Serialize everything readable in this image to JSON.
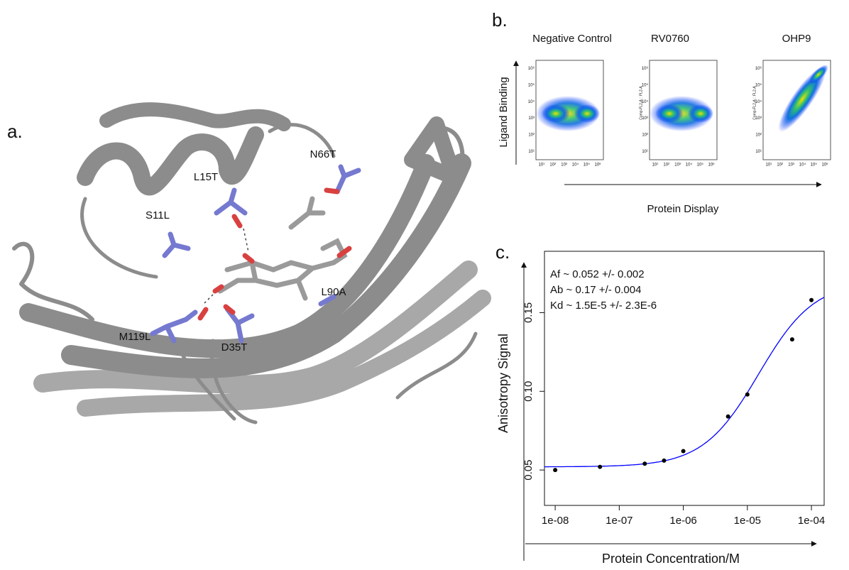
{
  "panel_a": {
    "label": "a.",
    "residues": [
      "N66T",
      "L15T",
      "S11L",
      "L90A",
      "M119L",
      "D35T"
    ]
  },
  "panel_b": {
    "label": "b.",
    "titles": [
      "Negative Control",
      "RV0760",
      "OHP9"
    ],
    "y_label": "Ligand Binding",
    "x_label": "Protein Display",
    "axis_ticks": [
      "10¹",
      "10²",
      "10³",
      "10⁴",
      "10⁵",
      "10⁶"
    ],
    "y_axis_caption": "Comp-FL2-A :: FL2-A"
  },
  "chart_data": {
    "type": "scatter",
    "label": "c.",
    "annotations": [
      "Af ~ 0.052 +/- 0.002",
      "Ab ~ 0.17 +/- 0.004",
      "Kd ~ 1.5E-5 +/- 2.3E-6"
    ],
    "x_label": "Protein Concentration/M",
    "y_label": "Anisotropy Signal",
    "x": [
      1e-08,
      5e-08,
      2.5e-07,
      5e-07,
      1e-06,
      5e-06,
      1e-05,
      5e-05,
      0.0001
    ],
    "values": [
      0.05,
      0.052,
      0.054,
      0.056,
      0.062,
      0.084,
      0.098,
      0.133,
      0.158
    ],
    "point_color": "#000000",
    "fit": {
      "color": "#0000ff",
      "Af": 0.052,
      "Ab": 0.17,
      "Kd": 1.5e-05
    },
    "log_x": true,
    "xlim": [
      6.8e-09,
      0.000158
    ],
    "ylim": [
      0.0275,
      0.189
    ],
    "xticks": [
      {
        "value": 1e-08,
        "label": "1e-08"
      },
      {
        "value": 1e-07,
        "label": "1e-07"
      },
      {
        "value": 1e-06,
        "label": "1e-06"
      },
      {
        "value": 1e-05,
        "label": "1e-05"
      },
      {
        "value": 0.0001,
        "label": "1e-04"
      }
    ],
    "yticks": [
      0.05,
      {
        "value": 0.1,
        "label": "0.10"
      },
      0.15
    ]
  }
}
